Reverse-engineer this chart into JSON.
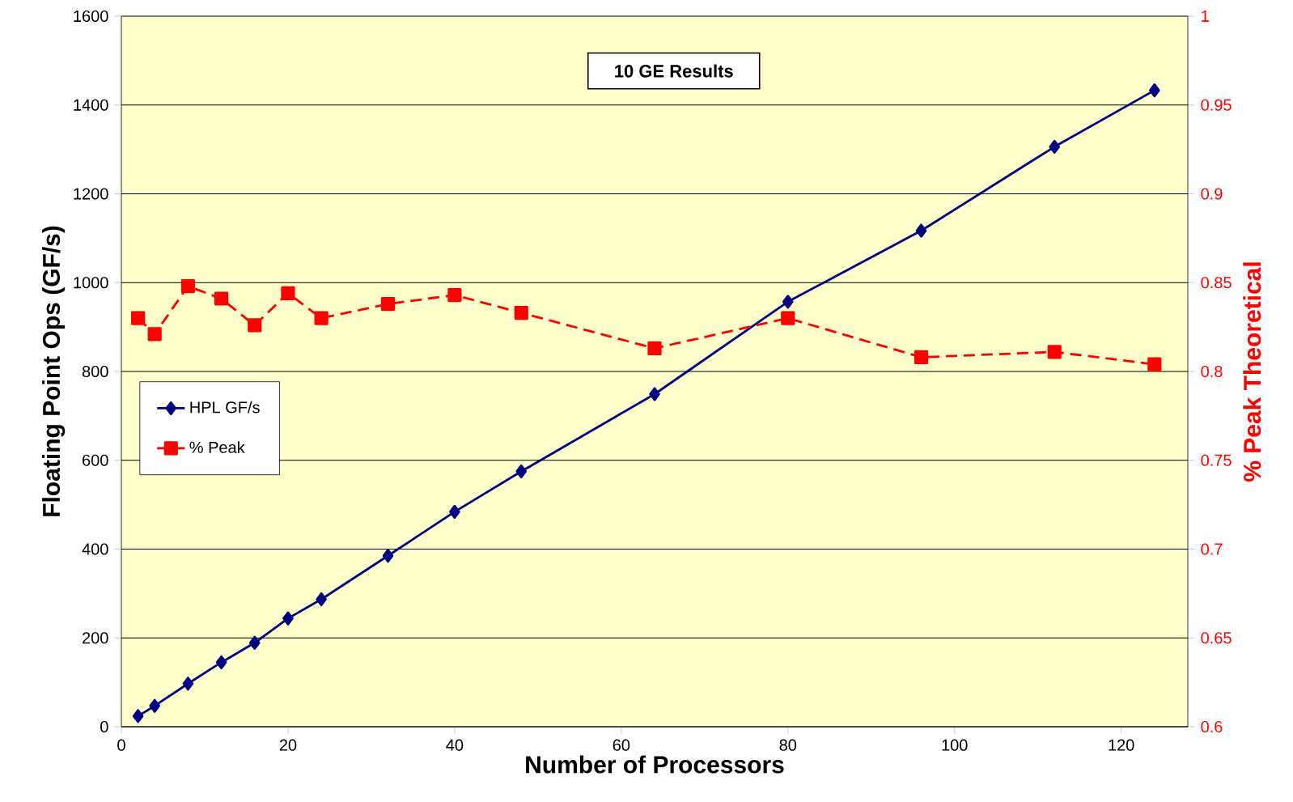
{
  "chart_data": {
    "type": "line",
    "title": "10 GE Results",
    "xlabel": "Number of Processors",
    "ylabel": "Floating Point Ops (GF/s)",
    "y2label": "% Peak Theoretical",
    "x": [
      2,
      4,
      8,
      12,
      16,
      20,
      24,
      32,
      40,
      48,
      64,
      80,
      96,
      112,
      124
    ],
    "series": [
      {
        "name": "HPL GF/s",
        "color": "#000080",
        "marker": "diamond",
        "line_style": "solid",
        "values": [
          24,
          47,
          97,
          145,
          189,
          244,
          287,
          385,
          484,
          575,
          749,
          957,
          1117,
          1306,
          1433
        ]
      },
      {
        "name": "% Peak",
        "color": "#ff0000",
        "marker": "square",
        "line_style": "dashed",
        "axis": "y2",
        "values": [
          0.83,
          0.821,
          0.848,
          0.841,
          0.826,
          0.844,
          0.83,
          0.838,
          0.843,
          0.833,
          0.813,
          0.83,
          0.808,
          0.811,
          0.804
        ]
      }
    ],
    "xlim": [
      0,
      128
    ],
    "xticks": [
      0,
      20,
      40,
      60,
      80,
      100,
      120
    ],
    "ylim": [
      0,
      1600
    ],
    "yticks": [
      0,
      200,
      400,
      600,
      800,
      1000,
      1200,
      1400,
      1600
    ],
    "y2lim": [
      0.6,
      1
    ],
    "y2ticks": [
      0.6,
      0.65,
      0.7,
      0.75,
      0.8,
      0.85,
      0.9,
      0.95,
      1
    ],
    "grid": "y",
    "legend": "left"
  }
}
